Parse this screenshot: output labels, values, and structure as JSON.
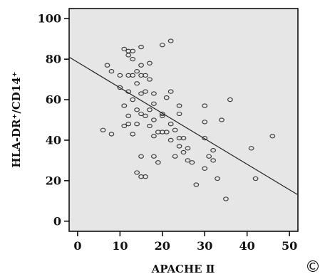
{
  "chart_data": {
    "type": "scatter",
    "title": "",
    "xlabel": "APACHE Ⅱ",
    "ylabel": "HLA-DR⁺/CD14⁺",
    "xlim": [
      -2,
      52
    ],
    "ylim": [
      -5,
      105
    ],
    "xticks": [
      0,
      10,
      20,
      30,
      40,
      50
    ],
    "yticks": [
      0,
      20,
      40,
      60,
      80,
      100
    ],
    "grid": false,
    "background_color": "#e6e6e6",
    "point_color": "#333333",
    "line_color": "#222222",
    "regression_line": {
      "x": [
        -2,
        52
      ],
      "y": [
        81,
        13
      ]
    },
    "points": [
      {
        "x": 6,
        "y": 45
      },
      {
        "x": 7,
        "y": 77
      },
      {
        "x": 8,
        "y": 74
      },
      {
        "x": 8,
        "y": 43
      },
      {
        "x": 10,
        "y": 72
      },
      {
        "x": 10,
        "y": 66
      },
      {
        "x": 11,
        "y": 85
      },
      {
        "x": 11,
        "y": 57
      },
      {
        "x": 11,
        "y": 47
      },
      {
        "x": 12,
        "y": 84
      },
      {
        "x": 12,
        "y": 82
      },
      {
        "x": 12,
        "y": 72
      },
      {
        "x": 12,
        "y": 64
      },
      {
        "x": 12,
        "y": 52
      },
      {
        "x": 12,
        "y": 48
      },
      {
        "x": 13,
        "y": 84
      },
      {
        "x": 13,
        "y": 80
      },
      {
        "x": 13,
        "y": 72
      },
      {
        "x": 13,
        "y": 60
      },
      {
        "x": 13,
        "y": 43
      },
      {
        "x": 14,
        "y": 74
      },
      {
        "x": 14,
        "y": 68
      },
      {
        "x": 14,
        "y": 55
      },
      {
        "x": 14,
        "y": 48
      },
      {
        "x": 14,
        "y": 24
      },
      {
        "x": 15,
        "y": 86
      },
      {
        "x": 15,
        "y": 77
      },
      {
        "x": 15,
        "y": 72
      },
      {
        "x": 15,
        "y": 63
      },
      {
        "x": 15,
        "y": 53
      },
      {
        "x": 15,
        "y": 32
      },
      {
        "x": 15,
        "y": 22
      },
      {
        "x": 16,
        "y": 72
      },
      {
        "x": 16,
        "y": 64
      },
      {
        "x": 16,
        "y": 52
      },
      {
        "x": 16,
        "y": 22
      },
      {
        "x": 17,
        "y": 78
      },
      {
        "x": 17,
        "y": 70
      },
      {
        "x": 17,
        "y": 55
      },
      {
        "x": 17,
        "y": 47
      },
      {
        "x": 18,
        "y": 63
      },
      {
        "x": 18,
        "y": 58
      },
      {
        "x": 18,
        "y": 50
      },
      {
        "x": 18,
        "y": 42
      },
      {
        "x": 18,
        "y": 32
      },
      {
        "x": 19,
        "y": 44
      },
      {
        "x": 19,
        "y": 29
      },
      {
        "x": 20,
        "y": 87
      },
      {
        "x": 20,
        "y": 53
      },
      {
        "x": 20,
        "y": 52
      },
      {
        "x": 20,
        "y": 44
      },
      {
        "x": 21,
        "y": 61
      },
      {
        "x": 21,
        "y": 44
      },
      {
        "x": 22,
        "y": 89
      },
      {
        "x": 22,
        "y": 64
      },
      {
        "x": 22,
        "y": 48
      },
      {
        "x": 22,
        "y": 40
      },
      {
        "x": 23,
        "y": 45
      },
      {
        "x": 23,
        "y": 32
      },
      {
        "x": 24,
        "y": 57
      },
      {
        "x": 24,
        "y": 53
      },
      {
        "x": 24,
        "y": 41
      },
      {
        "x": 24,
        "y": 37
      },
      {
        "x": 25,
        "y": 41
      },
      {
        "x": 25,
        "y": 34
      },
      {
        "x": 26,
        "y": 36
      },
      {
        "x": 26,
        "y": 30
      },
      {
        "x": 27,
        "y": 29
      },
      {
        "x": 28,
        "y": 18
      },
      {
        "x": 30,
        "y": 57
      },
      {
        "x": 30,
        "y": 49
      },
      {
        "x": 30,
        "y": 41
      },
      {
        "x": 30,
        "y": 26
      },
      {
        "x": 31,
        "y": 32
      },
      {
        "x": 32,
        "y": 35
      },
      {
        "x": 32,
        "y": 30
      },
      {
        "x": 33,
        "y": 21
      },
      {
        "x": 34,
        "y": 50
      },
      {
        "x": 35,
        "y": 11
      },
      {
        "x": 36,
        "y": 60
      },
      {
        "x": 41,
        "y": 36
      },
      {
        "x": 42,
        "y": 21
      },
      {
        "x": 46,
        "y": 42
      }
    ]
  },
  "corner_mark": "©"
}
